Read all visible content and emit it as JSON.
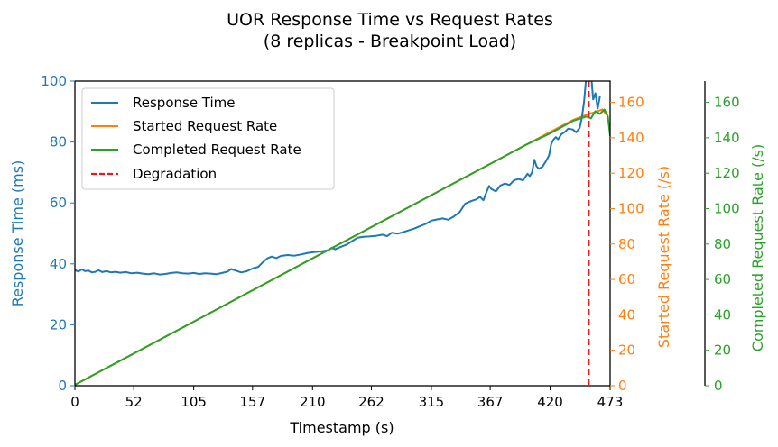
{
  "chart_data": {
    "type": "line",
    "title_line1": "UOR Response Time vs Request Rates",
    "title_line2": "(8 replicas  - Breakpoint Load)",
    "xlabel": "Timestamp (s)",
    "ylabel_left": "Response Time (ms)",
    "ylabel_right1": "Started Request Rate (/s)",
    "ylabel_right2": "Completed Request Rate (/s)",
    "xlim": [
      0,
      473
    ],
    "ylim_left": [
      0,
      100
    ],
    "ylim_right": [
      0,
      172
    ],
    "x_ticks": [
      0,
      52,
      105,
      157,
      210,
      262,
      315,
      367,
      420,
      473
    ],
    "y_left_ticks": [
      0,
      20,
      40,
      60,
      80,
      100
    ],
    "y_right_ticks": [
      0,
      20,
      40,
      60,
      80,
      100,
      120,
      140,
      160
    ],
    "grid": false,
    "legend_position": "upper left",
    "colors": {
      "response": "#1f77b4",
      "started": "#ff7f0e",
      "completed": "#2ca02c",
      "degradation": "#e8191a"
    },
    "degradation_x": 454,
    "series": [
      {
        "name": "Response Time",
        "axis": "left",
        "points": [
          [
            0,
            38.0
          ],
          [
            3,
            37.5
          ],
          [
            6,
            38.2
          ],
          [
            9,
            37.6
          ],
          [
            12,
            37.8
          ],
          [
            15,
            37.2
          ],
          [
            18,
            37.4
          ],
          [
            21,
            37.9
          ],
          [
            24,
            37.3
          ],
          [
            28,
            37.6
          ],
          [
            32,
            37.2
          ],
          [
            36,
            37.4
          ],
          [
            40,
            37.1
          ],
          [
            45,
            37.3
          ],
          [
            50,
            36.9
          ],
          [
            55,
            37.1
          ],
          [
            60,
            36.8
          ],
          [
            65,
            36.6
          ],
          [
            70,
            36.9
          ],
          [
            75,
            36.5
          ],
          [
            80,
            36.7
          ],
          [
            85,
            37.0
          ],
          [
            90,
            37.2
          ],
          [
            95,
            36.9
          ],
          [
            100,
            36.8
          ],
          [
            105,
            37.0
          ],
          [
            110,
            36.7
          ],
          [
            115,
            36.9
          ],
          [
            120,
            36.8
          ],
          [
            125,
            36.6
          ],
          [
            130,
            37.0
          ],
          [
            135,
            37.5
          ],
          [
            138,
            38.3
          ],
          [
            142,
            37.8
          ],
          [
            147,
            37.2
          ],
          [
            152,
            37.6
          ],
          [
            157,
            38.5
          ],
          [
            162,
            39.0
          ],
          [
            166,
            40.5
          ],
          [
            170,
            41.8
          ],
          [
            174,
            42.4
          ],
          [
            178,
            41.9
          ],
          [
            182,
            42.6
          ],
          [
            188,
            42.9
          ],
          [
            194,
            42.7
          ],
          [
            200,
            43.1
          ],
          [
            206,
            43.6
          ],
          [
            212,
            43.9
          ],
          [
            218,
            44.1
          ],
          [
            224,
            44.5
          ],
          [
            227,
            45.3
          ],
          [
            230,
            44.8
          ],
          [
            235,
            45.6
          ],
          [
            240,
            46.3
          ],
          [
            245,
            47.5
          ],
          [
            250,
            48.6
          ],
          [
            255,
            48.9
          ],
          [
            260,
            49.0
          ],
          [
            266,
            49.2
          ],
          [
            272,
            49.6
          ],
          [
            276,
            49.1
          ],
          [
            280,
            50.2
          ],
          [
            285,
            49.9
          ],
          [
            290,
            50.4
          ],
          [
            295,
            51.0
          ],
          [
            300,
            51.6
          ],
          [
            305,
            52.4
          ],
          [
            310,
            53.1
          ],
          [
            315,
            54.2
          ],
          [
            320,
            54.6
          ],
          [
            325,
            54.9
          ],
          [
            330,
            54.5
          ],
          [
            335,
            55.6
          ],
          [
            340,
            57.0
          ],
          [
            345,
            59.8
          ],
          [
            350,
            60.6
          ],
          [
            355,
            61.2
          ],
          [
            358,
            62.0
          ],
          [
            361,
            60.9
          ],
          [
            364,
            63.8
          ],
          [
            366,
            65.6
          ],
          [
            368,
            64.6
          ],
          [
            372,
            63.8
          ],
          [
            376,
            65.7
          ],
          [
            380,
            66.4
          ],
          [
            384,
            65.9
          ],
          [
            388,
            67.4
          ],
          [
            392,
            67.9
          ],
          [
            396,
            67.4
          ],
          [
            400,
            69.6
          ],
          [
            402,
            68.8
          ],
          [
            404,
            70.0
          ],
          [
            406,
            74.2
          ],
          [
            408,
            72.0
          ],
          [
            410,
            71.2
          ],
          [
            413,
            71.8
          ],
          [
            416,
            73.5
          ],
          [
            419,
            75.6
          ],
          [
            421,
            79.4
          ],
          [
            423,
            80.8
          ],
          [
            425,
            81.6
          ],
          [
            427,
            80.9
          ],
          [
            430,
            82.6
          ],
          [
            433,
            83.3
          ],
          [
            436,
            84.4
          ],
          [
            440,
            84.1
          ],
          [
            443,
            83.2
          ],
          [
            446,
            84.6
          ],
          [
            448,
            88.0
          ],
          [
            450,
            93.5
          ],
          [
            452,
            102
          ],
          [
            454,
            106
          ],
          [
            456,
            103
          ],
          [
            458,
            94
          ],
          [
            460,
            96
          ],
          [
            462,
            91
          ],
          [
            464,
            95
          ]
        ]
      },
      {
        "name": "Started Request Rate",
        "axis": "right",
        "points": [
          [
            0,
            0.5
          ],
          [
            50,
            17.5
          ],
          [
            100,
            34.5
          ],
          [
            150,
            51.5
          ],
          [
            200,
            68.5
          ],
          [
            250,
            85.5
          ],
          [
            300,
            102.5
          ],
          [
            350,
            119.5
          ],
          [
            400,
            136.5
          ],
          [
            440,
            150
          ],
          [
            454,
            153.5
          ],
          [
            460,
            154.5
          ],
          [
            466,
            156
          ],
          [
            470,
            153
          ]
        ]
      },
      {
        "name": "Completed Request Rate",
        "axis": "right2",
        "points": [
          [
            0,
            0.5
          ],
          [
            50,
            17.5
          ],
          [
            100,
            34.5
          ],
          [
            150,
            51.5
          ],
          [
            200,
            68.5
          ],
          [
            250,
            85.5
          ],
          [
            300,
            102.5
          ],
          [
            350,
            119.5
          ],
          [
            400,
            136.5
          ],
          [
            420,
            142.5
          ],
          [
            440,
            149.5
          ],
          [
            452,
            152
          ],
          [
            456,
            151
          ],
          [
            460,
            155
          ],
          [
            464,
            153.5
          ],
          [
            468,
            156
          ],
          [
            471,
            152
          ],
          [
            473,
            141
          ]
        ]
      },
      {
        "name": "Degradation",
        "axis": "left",
        "style": "dashed"
      }
    ]
  }
}
